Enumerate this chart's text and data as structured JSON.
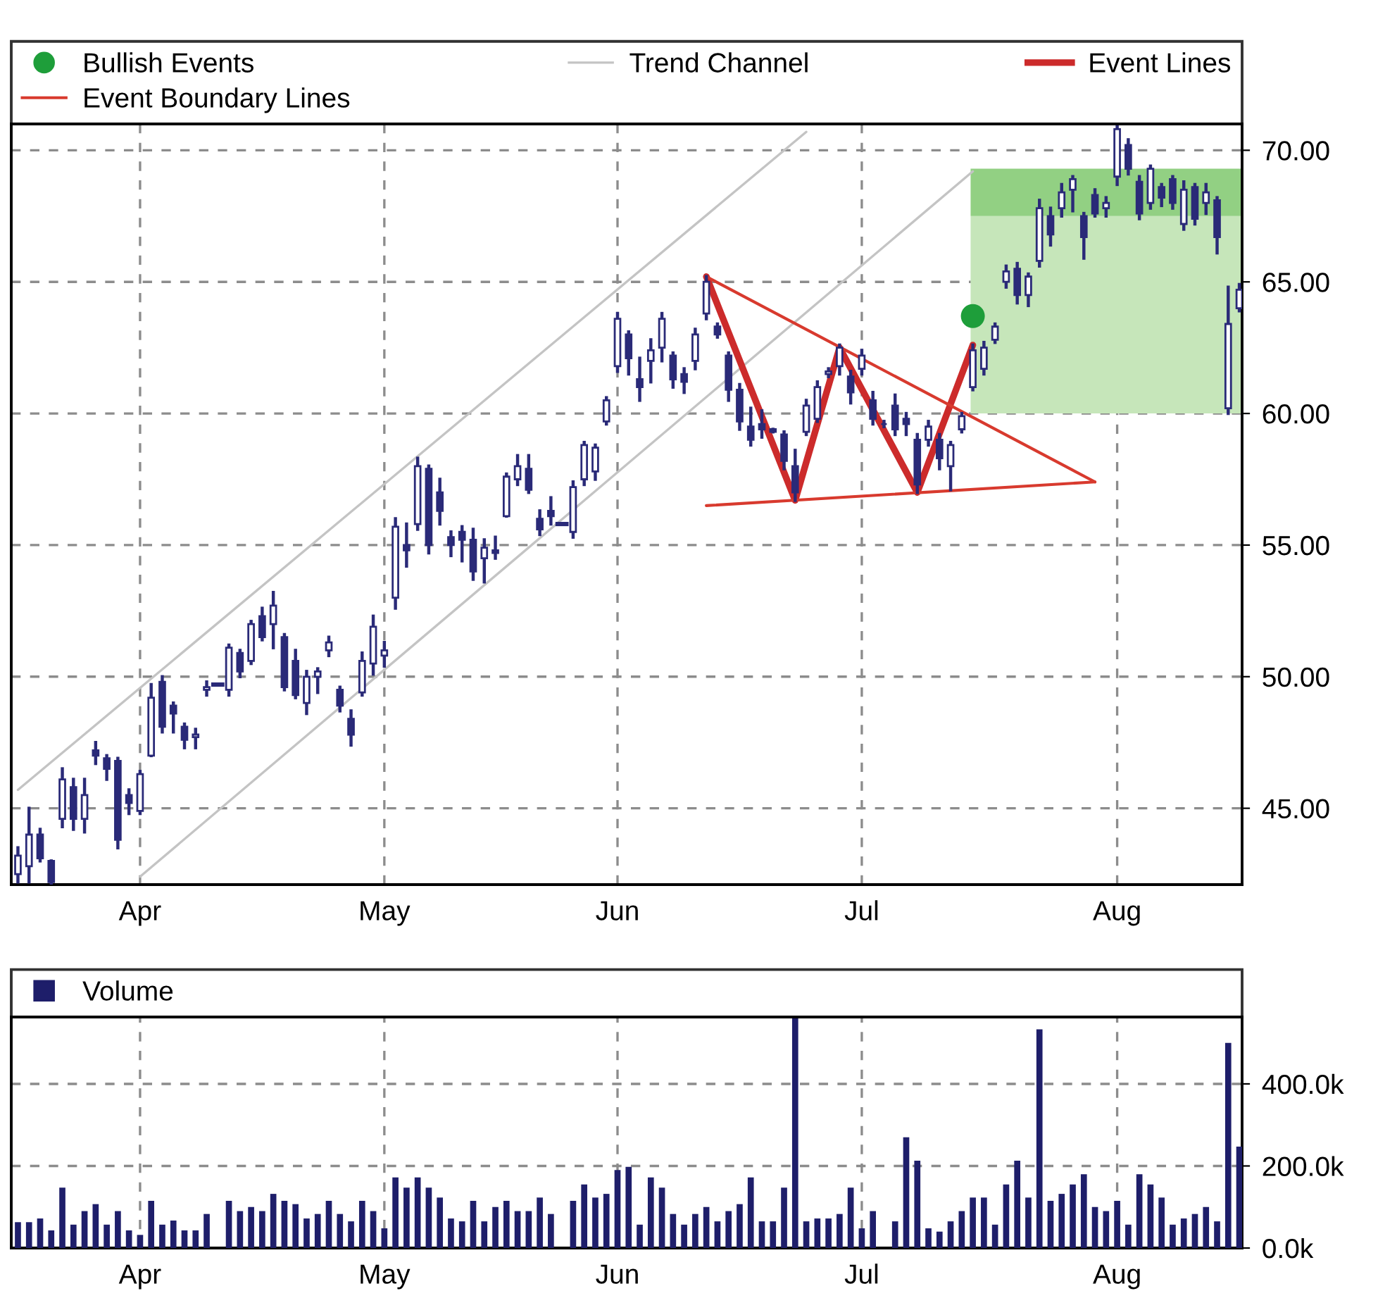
{
  "chart_data": [
    {
      "type": "candlestick",
      "color": "#2a2a78",
      "grid": true,
      "legend": "top",
      "categories": [
        null,
        null,
        null,
        null,
        null,
        null,
        null,
        null,
        null,
        null,
        null,
        "Apr",
        null,
        null,
        null,
        null,
        null,
        null,
        null,
        null,
        null,
        null,
        null,
        null,
        null,
        null,
        null,
        null,
        null,
        null,
        null,
        null,
        null,
        "May",
        null,
        null,
        null,
        null,
        null,
        null,
        null,
        null,
        null,
        null,
        null,
        null,
        null,
        null,
        null,
        null,
        null,
        null,
        null,
        null,
        "Jun",
        null,
        null,
        null,
        null,
        null,
        null,
        null,
        null,
        null,
        null,
        null,
        null,
        null,
        null,
        null,
        null,
        null,
        null,
        null,
        null,
        null,
        "Jul",
        null,
        null,
        null,
        null,
        null,
        null,
        null,
        null,
        null,
        null,
        null,
        null,
        null,
        null,
        null,
        null,
        null,
        null,
        null,
        null,
        null,
        null,
        "Aug",
        null,
        null,
        null,
        null,
        null,
        null,
        null,
        null,
        null,
        null,
        null
      ],
      "ylim": [
        42.1,
        71.0
      ],
      "yticks": [
        {
          "value": 45,
          "label": "45.00"
        },
        {
          "value": 50,
          "label": "50.00"
        },
        {
          "value": 55,
          "label": "55.00"
        },
        {
          "value": 60,
          "label": "60.00"
        },
        {
          "value": 65,
          "label": "65.00"
        },
        {
          "value": 70,
          "label": "70.00"
        }
      ],
      "ohlc": [
        [
          42.5,
          43.5,
          42.2,
          43.2
        ],
        [
          42.8,
          45.0,
          42.2,
          44.0
        ],
        [
          44.0,
          44.2,
          43.0,
          43.1
        ],
        [
          43.0,
          43.0,
          42.1,
          42.2
        ],
        [
          44.6,
          46.5,
          44.3,
          46.1
        ],
        [
          45.8,
          46.1,
          44.2,
          44.6
        ],
        [
          44.6,
          46.1,
          44.1,
          45.5
        ],
        [
          47.2,
          47.5,
          46.7,
          47.0
        ],
        [
          46.9,
          47.0,
          46.1,
          46.5
        ],
        [
          46.8,
          46.9,
          43.5,
          43.8
        ],
        [
          45.5,
          45.7,
          44.8,
          45.2
        ],
        [
          44.9,
          46.4,
          44.8,
          46.3
        ],
        [
          47.0,
          49.7,
          47.0,
          49.2
        ],
        [
          49.8,
          50.0,
          47.9,
          48.1
        ],
        [
          48.9,
          49.0,
          47.9,
          48.6
        ],
        [
          48.1,
          48.2,
          47.3,
          47.6
        ],
        [
          47.7,
          48.0,
          47.3,
          47.8
        ],
        [
          49.5,
          49.8,
          49.3,
          49.6
        ],
        [
          49.7,
          49.7,
          49.7,
          49.7
        ],
        [
          49.5,
          51.2,
          49.3,
          51.1
        ],
        [
          50.9,
          51.0,
          50.0,
          50.2
        ],
        [
          50.6,
          52.1,
          50.5,
          52.0
        ],
        [
          52.3,
          52.6,
          51.4,
          51.5
        ],
        [
          52.0,
          53.2,
          51.1,
          52.7
        ],
        [
          51.5,
          51.6,
          49.5,
          49.6
        ],
        [
          50.6,
          51.0,
          49.2,
          49.3
        ],
        [
          49.0,
          50.2,
          48.6,
          50.0
        ],
        [
          50.0,
          50.3,
          49.4,
          50.2
        ],
        [
          51.0,
          51.5,
          50.8,
          51.3
        ],
        [
          49.5,
          49.6,
          48.7,
          48.9
        ],
        [
          48.4,
          48.7,
          47.4,
          47.8
        ],
        [
          49.4,
          50.9,
          49.3,
          50.6
        ],
        [
          50.5,
          52.3,
          50.1,
          51.9
        ],
        [
          50.8,
          51.3,
          50.4,
          51.0
        ],
        [
          53.0,
          56.0,
          52.6,
          55.7
        ],
        [
          55.0,
          55.8,
          54.2,
          54.8
        ],
        [
          55.8,
          58.3,
          55.6,
          58.0
        ],
        [
          57.9,
          58.0,
          54.7,
          55.0
        ],
        [
          57.0,
          57.5,
          55.8,
          56.3
        ],
        [
          55.3,
          55.5,
          54.6,
          55.0
        ],
        [
          55.5,
          55.7,
          54.4,
          55.2
        ],
        [
          55.2,
          55.6,
          53.7,
          54.0
        ],
        [
          54.5,
          55.2,
          53.6,
          54.9
        ],
        [
          54.8,
          55.3,
          54.5,
          54.7
        ],
        [
          56.1,
          57.7,
          56.1,
          57.6
        ],
        [
          57.5,
          58.4,
          57.3,
          58.0
        ],
        [
          57.9,
          58.4,
          57.0,
          57.1
        ],
        [
          56.0,
          56.3,
          55.4,
          55.6
        ],
        [
          56.3,
          56.8,
          55.8,
          56.1
        ],
        [
          55.8,
          55.8,
          55.8,
          55.8
        ],
        [
          55.5,
          57.4,
          55.3,
          57.2
        ],
        [
          57.5,
          58.9,
          57.3,
          58.8
        ],
        [
          57.8,
          58.8,
          57.5,
          58.7
        ],
        [
          59.7,
          60.6,
          59.6,
          60.5
        ],
        [
          61.8,
          63.8,
          61.6,
          63.6
        ],
        [
          63.0,
          63.1,
          61.5,
          62.1
        ],
        [
          61.3,
          62.1,
          60.5,
          61.0
        ],
        [
          62.0,
          62.8,
          61.2,
          62.4
        ],
        [
          62.5,
          63.8,
          62.0,
          63.6
        ],
        [
          62.2,
          62.3,
          61.0,
          61.3
        ],
        [
          61.5,
          61.7,
          60.8,
          61.2
        ],
        [
          62.0,
          63.2,
          61.7,
          63.0
        ],
        [
          63.8,
          65.2,
          63.6,
          65.0
        ],
        [
          63.3,
          63.4,
          62.9,
          63.0
        ],
        [
          62.2,
          62.3,
          60.5,
          60.9
        ],
        [
          60.9,
          61.1,
          59.4,
          59.7
        ],
        [
          59.5,
          60.2,
          58.8,
          59.0
        ],
        [
          59.6,
          60.1,
          59.1,
          59.4
        ],
        [
          59.4,
          59.4,
          59.3,
          59.3
        ],
        [
          59.2,
          59.3,
          57.9,
          58.2
        ],
        [
          58.0,
          58.6,
          56.7,
          57.0
        ],
        [
          59.3,
          60.5,
          59.2,
          60.3
        ],
        [
          59.8,
          61.2,
          59.7,
          61.0
        ],
        [
          61.5,
          61.7,
          61.4,
          61.6
        ],
        [
          61.8,
          62.6,
          61.5,
          62.5
        ],
        [
          61.4,
          61.6,
          60.4,
          60.8
        ],
        [
          61.7,
          62.4,
          61.5,
          62.2
        ],
        [
          60.5,
          60.8,
          59.6,
          59.8
        ],
        [
          59.6,
          59.7,
          59.5,
          59.6
        ],
        [
          60.3,
          60.7,
          59.2,
          59.4
        ],
        [
          59.8,
          60.0,
          59.2,
          59.6
        ],
        [
          59.0,
          59.2,
          57.0,
          57.3
        ],
        [
          59.0,
          59.7,
          58.8,
          59.5
        ],
        [
          59.0,
          59.2,
          57.9,
          58.3
        ],
        [
          58.0,
          58.9,
          57.1,
          58.8
        ],
        [
          59.4,
          60.0,
          59.3,
          59.9
        ],
        [
          61.0,
          62.6,
          60.9,
          62.4
        ],
        [
          61.7,
          62.7,
          61.5,
          62.5
        ],
        [
          62.8,
          63.4,
          62.7,
          63.3
        ],
        [
          65.0,
          65.6,
          64.8,
          65.4
        ],
        [
          65.5,
          65.7,
          64.2,
          64.5
        ],
        [
          64.5,
          65.3,
          64.1,
          65.2
        ],
        [
          65.8,
          68.1,
          65.6,
          67.8
        ],
        [
          67.5,
          67.8,
          66.4,
          66.8
        ],
        [
          67.8,
          68.7,
          67.5,
          68.4
        ],
        [
          68.5,
          69.0,
          67.7,
          68.9
        ],
        [
          67.5,
          67.6,
          65.9,
          66.7
        ],
        [
          68.3,
          68.5,
          67.5,
          67.6
        ],
        [
          67.8,
          68.2,
          67.5,
          68.0
        ],
        [
          69.0,
          70.9,
          68.7,
          70.8
        ],
        [
          70.2,
          70.4,
          69.1,
          69.3
        ],
        [
          68.8,
          69.0,
          67.4,
          67.6
        ],
        [
          68.0,
          69.4,
          67.8,
          69.3
        ],
        [
          68.6,
          68.7,
          67.9,
          68.2
        ],
        [
          68.9,
          69.0,
          67.8,
          68.0
        ],
        [
          67.2,
          68.8,
          67.0,
          68.5
        ],
        [
          68.6,
          68.7,
          67.2,
          67.4
        ],
        [
          68.0,
          68.7,
          67.6,
          68.4
        ],
        [
          68.1,
          68.2,
          66.1,
          66.7
        ],
        [
          60.2,
          64.8,
          60.0,
          63.4
        ],
        [
          64.0,
          64.9,
          63.9,
          64.7
        ]
      ],
      "series": [
        {
          "type": "scatter",
          "name": "Bullish Events",
          "color": "#1e9e3a",
          "marker": "circle",
          "values": [
            null,
            null,
            null,
            null,
            null,
            null,
            null,
            null,
            null,
            null,
            null,
            null,
            null,
            null,
            null,
            null,
            null,
            null,
            null,
            null,
            null,
            null,
            null,
            null,
            null,
            null,
            null,
            null,
            null,
            null,
            null,
            null,
            null,
            null,
            null,
            null,
            null,
            null,
            null,
            null,
            null,
            null,
            null,
            null,
            null,
            null,
            null,
            null,
            null,
            null,
            null,
            null,
            null,
            null,
            null,
            null,
            null,
            null,
            null,
            null,
            null,
            null,
            null,
            null,
            null,
            null,
            null,
            null,
            null,
            null,
            null,
            null,
            null,
            null,
            null,
            null,
            null,
            null,
            null,
            null,
            null,
            null,
            null,
            null,
            null,
            null,
            63.7,
            null,
            null,
            null,
            null,
            null,
            null,
            null,
            null,
            null,
            null,
            null,
            null,
            null,
            null,
            null,
            null,
            null,
            null,
            null,
            null,
            null,
            null,
            null,
            null
          ]
        },
        {
          "type": "line",
          "name": "Trend Channel",
          "color": "#c4c4c4",
          "values": [
            45.7,
            null,
            null,
            null,
            null,
            null,
            null,
            null,
            null,
            null,
            null,
            null,
            null,
            null,
            null,
            null,
            null,
            null,
            null,
            null,
            null,
            null,
            null,
            null,
            null,
            null,
            null,
            null,
            null,
            null,
            null,
            null,
            null,
            null,
            null,
            null,
            null,
            null,
            null,
            null,
            null,
            null,
            null,
            null,
            null,
            null,
            null,
            null,
            null,
            null,
            null,
            null,
            null,
            null,
            null,
            null,
            null,
            null,
            null,
            null,
            null,
            null,
            null,
            null,
            null,
            null,
            null,
            null,
            null,
            null,
            null,
            70.7,
            null,
            null,
            null,
            null,
            null,
            null,
            null,
            null,
            null,
            null,
            null,
            null,
            null,
            null,
            null,
            null,
            null,
            null,
            null,
            null,
            null,
            null,
            null,
            null,
            null,
            null,
            null,
            null,
            null,
            null,
            null,
            null,
            null,
            null,
            null,
            null,
            null,
            null,
            null
          ]
        },
        {
          "type": "line",
          "color": "#c4c4c4",
          "values": [
            null,
            null,
            null,
            null,
            null,
            null,
            null,
            null,
            null,
            null,
            null,
            42.4,
            null,
            null,
            null,
            null,
            null,
            null,
            null,
            null,
            null,
            null,
            null,
            null,
            null,
            null,
            null,
            null,
            null,
            null,
            null,
            null,
            null,
            null,
            null,
            null,
            null,
            null,
            null,
            null,
            null,
            null,
            null,
            null,
            null,
            null,
            null,
            null,
            null,
            null,
            null,
            null,
            null,
            null,
            null,
            null,
            null,
            null,
            null,
            null,
            null,
            null,
            null,
            null,
            null,
            null,
            null,
            null,
            null,
            null,
            null,
            null,
            null,
            null,
            null,
            null,
            null,
            null,
            null,
            null,
            null,
            null,
            null,
            null,
            null,
            null,
            69.2,
            null,
            null,
            null,
            null,
            null,
            null,
            null,
            null,
            null,
            null,
            null,
            null,
            null,
            null,
            null,
            null,
            null,
            null,
            null,
            null,
            null,
            null,
            null,
            null
          ]
        },
        {
          "type": "line",
          "name": "Event Lines",
          "color": "#cc2b2b",
          "values": [
            null,
            null,
            null,
            null,
            null,
            null,
            null,
            null,
            null,
            null,
            null,
            null,
            null,
            null,
            null,
            null,
            null,
            null,
            null,
            null,
            null,
            null,
            null,
            null,
            null,
            null,
            null,
            null,
            null,
            null,
            null,
            null,
            null,
            null,
            null,
            null,
            null,
            null,
            null,
            null,
            null,
            null,
            null,
            null,
            null,
            null,
            null,
            null,
            null,
            null,
            null,
            null,
            null,
            null,
            null,
            null,
            null,
            null,
            null,
            null,
            null,
            null,
            65.2,
            null,
            null,
            null,
            null,
            null,
            null,
            null,
            56.7,
            null,
            null,
            null,
            62.5,
            null,
            null,
            null,
            null,
            null,
            null,
            57.0,
            null,
            null,
            null,
            null,
            62.6,
            null,
            null,
            null,
            null,
            null,
            null,
            null,
            null,
            null,
            null,
            null,
            null,
            null,
            null,
            null,
            null,
            null,
            null,
            null,
            null,
            null,
            null,
            null,
            null
          ]
        },
        {
          "type": "line",
          "name": "Event Boundary Lines",
          "color": "#d83a2e",
          "values": [
            null,
            null,
            null,
            null,
            null,
            null,
            null,
            null,
            null,
            null,
            null,
            null,
            null,
            null,
            null,
            null,
            null,
            null,
            null,
            null,
            null,
            null,
            null,
            null,
            null,
            null,
            null,
            null,
            null,
            null,
            null,
            null,
            null,
            null,
            null,
            null,
            null,
            null,
            null,
            null,
            null,
            null,
            null,
            null,
            null,
            null,
            null,
            null,
            null,
            null,
            null,
            null,
            null,
            null,
            null,
            null,
            null,
            null,
            null,
            null,
            null,
            null,
            65.2,
            null,
            null,
            null,
            null,
            null,
            null,
            null,
            null,
            null,
            null,
            null,
            null,
            null,
            null,
            null,
            null,
            null,
            null,
            null,
            null,
            null,
            null,
            null,
            null,
            null,
            null,
            null,
            null,
            null,
            null,
            null,
            null,
            null,
            null,
            57.4,
            null,
            null,
            null,
            null,
            null,
            null,
            null,
            null,
            null,
            null,
            null,
            null,
            null
          ]
        },
        {
          "type": "line",
          "color": "#d83a2e",
          "values": [
            null,
            null,
            null,
            null,
            null,
            null,
            null,
            null,
            null,
            null,
            null,
            null,
            null,
            null,
            null,
            null,
            null,
            null,
            null,
            null,
            null,
            null,
            null,
            null,
            null,
            null,
            null,
            null,
            null,
            null,
            null,
            null,
            null,
            null,
            null,
            null,
            null,
            null,
            null,
            null,
            null,
            null,
            null,
            null,
            null,
            null,
            null,
            null,
            null,
            null,
            null,
            null,
            null,
            null,
            null,
            null,
            null,
            null,
            null,
            null,
            null,
            null,
            56.5,
            null,
            null,
            null,
            null,
            null,
            null,
            null,
            null,
            null,
            null,
            null,
            null,
            null,
            null,
            null,
            null,
            null,
            null,
            null,
            null,
            null,
            null,
            null,
            null,
            null,
            null,
            null,
            null,
            null,
            null,
            null,
            null,
            null,
            null,
            57.4,
            null,
            null,
            null,
            null,
            null,
            null,
            null,
            null,
            null,
            null,
            null,
            null,
            null
          ]
        }
      ],
      "bands": [
        {
          "axis": "y",
          "from": 60.0,
          "to": 67.5,
          "color": "#c6e6ba"
        },
        {
          "axis": "y",
          "from": 67.5,
          "to": 69.3,
          "color": "#92d083"
        }
      ]
    },
    {
      "type": "bar",
      "grid": true,
      "legend": "top",
      "categories": [
        null,
        null,
        null,
        null,
        null,
        null,
        null,
        null,
        null,
        null,
        null,
        "Apr",
        null,
        null,
        null,
        null,
        null,
        null,
        null,
        null,
        null,
        null,
        null,
        null,
        null,
        null,
        null,
        null,
        null,
        null,
        null,
        null,
        null,
        "May",
        null,
        null,
        null,
        null,
        null,
        null,
        null,
        null,
        null,
        null,
        null,
        null,
        null,
        null,
        null,
        null,
        null,
        null,
        null,
        null,
        "Jun",
        null,
        null,
        null,
        null,
        null,
        null,
        null,
        null,
        null,
        null,
        null,
        null,
        null,
        null,
        null,
        null,
        null,
        null,
        null,
        null,
        null,
        "Jul",
        null,
        null,
        null,
        null,
        null,
        null,
        null,
        null,
        null,
        null,
        null,
        null,
        null,
        null,
        null,
        null,
        null,
        null,
        null,
        null,
        null,
        null,
        "Aug",
        null,
        null,
        null,
        null,
        null,
        null,
        null,
        null,
        null,
        null,
        null
      ],
      "ylim": [
        0,
        563000
      ],
      "yticks": [
        {
          "value": 0,
          "label": "0.0k"
        },
        {
          "value": 200000,
          "label": "200.0k"
        },
        {
          "value": 400000,
          "label": "400.0k"
        }
      ],
      "series": [
        {
          "type": "bar",
          "name": "Volume",
          "color": "#1e1e6a",
          "values": [
            63000,
            63000,
            72000,
            43000,
            147000,
            57000,
            90000,
            107000,
            57000,
            90000,
            43000,
            32000,
            115000,
            57000,
            67000,
            43000,
            43000,
            83000,
            0,
            115000,
            90000,
            100000,
            90000,
            132000,
            115000,
            107000,
            72000,
            83000,
            115000,
            83000,
            65000,
            115000,
            90000,
            48000,
            172000,
            147000,
            172000,
            147000,
            123000,
            72000,
            65000,
            115000,
            65000,
            100000,
            115000,
            90000,
            90000,
            123000,
            83000,
            0,
            115000,
            155000,
            123000,
            132000,
            190000,
            198000,
            57000,
            172000,
            147000,
            83000,
            57000,
            83000,
            100000,
            65000,
            90000,
            107000,
            172000,
            65000,
            65000,
            147000,
            560000,
            65000,
            72000,
            72000,
            83000,
            147000,
            48000,
            90000,
            0,
            65000,
            270000,
            213000,
            48000,
            40000,
            65000,
            90000,
            123000,
            123000,
            57000,
            155000,
            213000,
            123000,
            533000,
            115000,
            132000,
            155000,
            180000,
            100000,
            90000,
            115000,
            57000,
            180000,
            155000,
            123000,
            57000,
            72000,
            83000,
            100000,
            65000,
            500000,
            247000
          ]
        }
      ]
    }
  ]
}
